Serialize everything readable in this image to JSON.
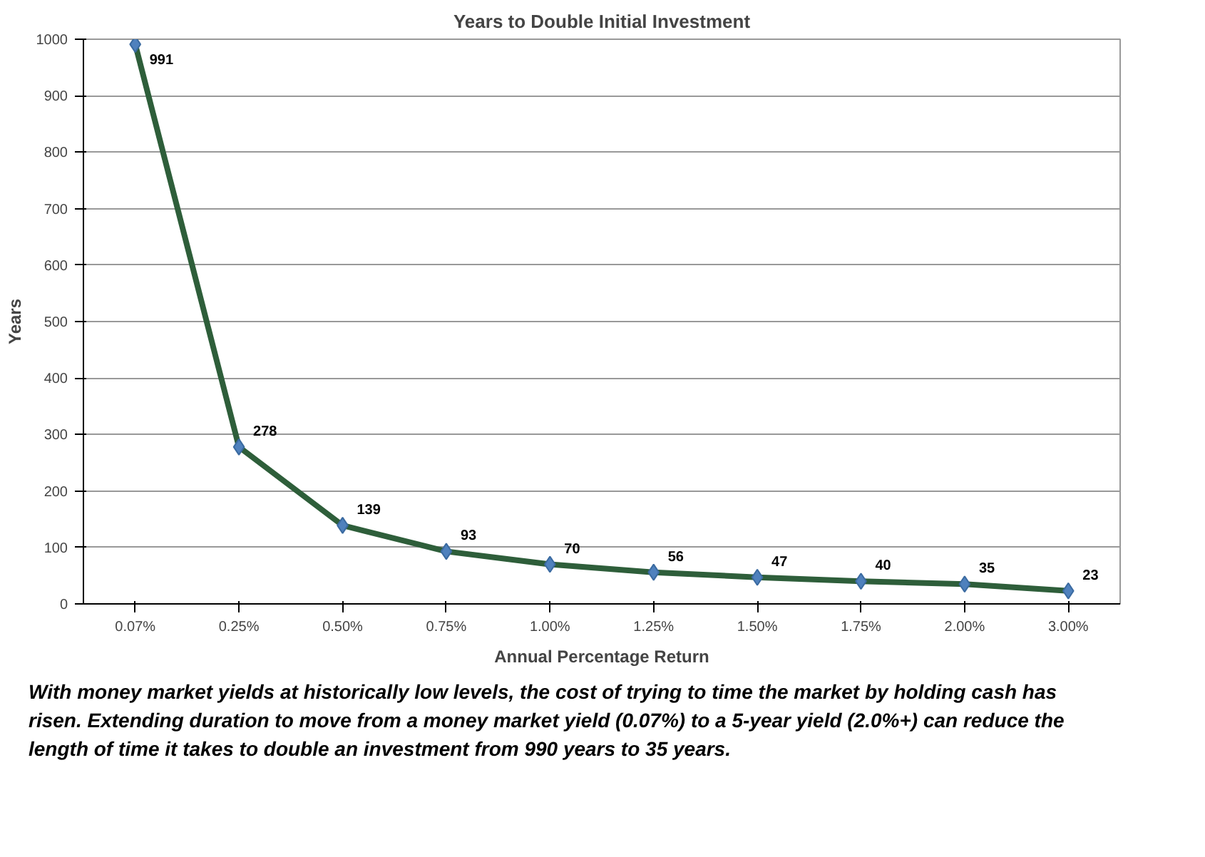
{
  "chart_data": {
    "type": "line",
    "title": "Years to Double Initial Investment",
    "xlabel": "Annual Percentage Return",
    "ylabel": "Years",
    "categories": [
      "0.07%",
      "0.25%",
      "0.50%",
      "0.75%",
      "1.00%",
      "1.25%",
      "1.50%",
      "1.75%",
      "2.00%",
      "3.00%"
    ],
    "series": [
      {
        "color": "#2e5e3a",
        "values": [
          991,
          278,
          139,
          93,
          70,
          56,
          47,
          40,
          35,
          23
        ]
      }
    ],
    "ylim": [
      0,
      1000
    ],
    "yticks": [
      0,
      100,
      200,
      300,
      400,
      500,
      600,
      700,
      800,
      900,
      1000
    ],
    "grid": "y",
    "marker": "diamond",
    "line_style": "solid",
    "data_labels": true,
    "annotations": [
      "With money market yields at historically low levels, the cost of trying to time the market by holding cash has risen. Extending duration to move from a money market yield (0.07%) to a 5-year yield (2.0%+) can reduce the length of time it takes to double an investment from 990 years to 35 years."
    ]
  }
}
